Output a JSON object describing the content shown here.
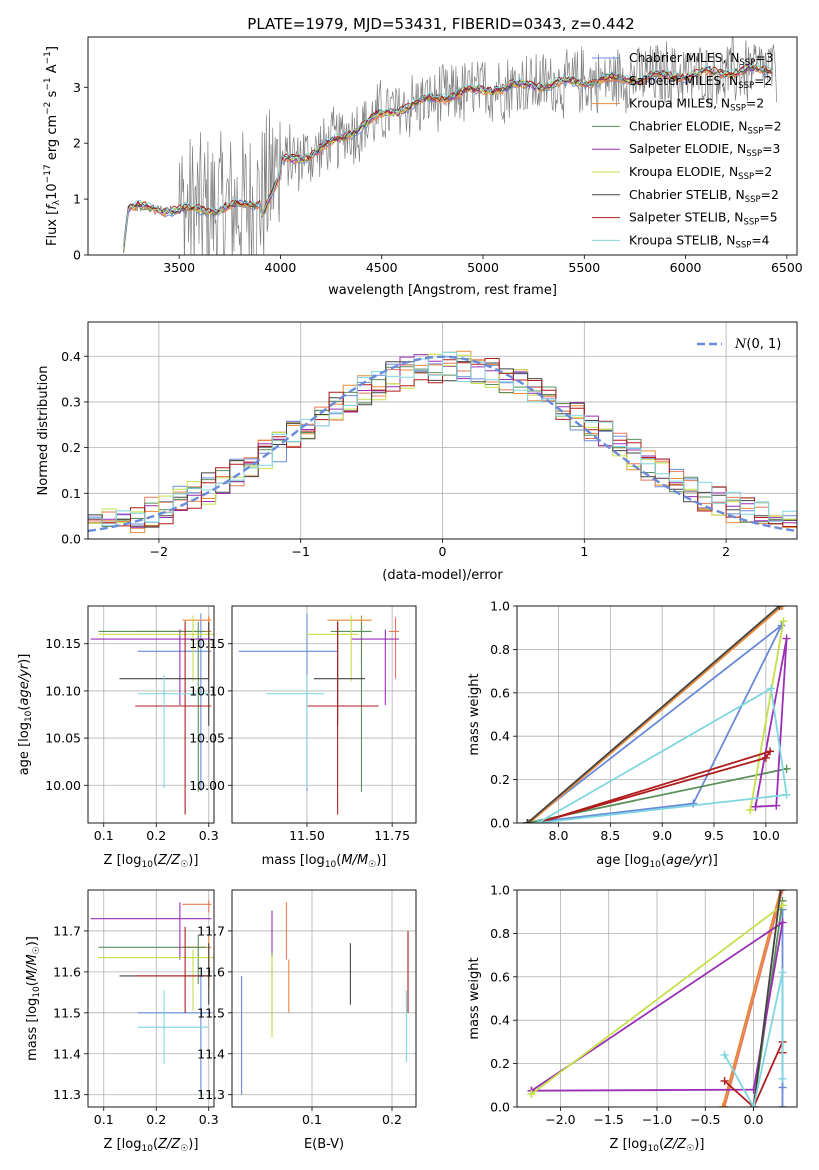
{
  "figure": {
    "title": "PLATE=1979, MJD=53431, FIBERID=0343, z=0.442"
  },
  "series_styles": [
    {
      "name": "Chabrier MILES, N$_{SSP}$=3",
      "color": "#6a8bd9"
    },
    {
      "name": "Salpeter MILES, N$_{SSP}$=2",
      "color": "#e8795a"
    },
    {
      "name": "Kroupa MILES, N$_{SSP}$=2",
      "color": "#e58a3a"
    },
    {
      "name": "Chabrier ELODIE, N$_{SSP}$=2",
      "color": "#5a8f5a"
    },
    {
      "name": "Salpeter ELODIE, N$_{SSP}$=3",
      "color": "#9a2fb5"
    },
    {
      "name": "Kroupa ELODIE, N$_{SSP}$=2",
      "color": "#c6e04c"
    },
    {
      "name": "Chabrier STELIB, N$_{SSP}$=2",
      "color": "#444444"
    },
    {
      "name": "Salpeter STELIB, N$_{SSP}$=5",
      "color": "#b01c1c"
    },
    {
      "name": "Kroupa STELIB, N$_{SSP}$=4",
      "color": "#7fd6e0"
    }
  ],
  "legend_labels": [
    {
      "pre": "Chabrier MILES, N",
      "sub": "SSP",
      "post": "=3"
    },
    {
      "pre": "Salpeter MILES, N",
      "sub": "SSP",
      "post": "=2"
    },
    {
      "pre": "Kroupa MILES, N",
      "sub": "SSP",
      "post": "=2"
    },
    {
      "pre": "Chabrier ELODIE, N",
      "sub": "SSP",
      "post": "=2"
    },
    {
      "pre": "Salpeter ELODIE, N",
      "sub": "SSP",
      "post": "=3"
    },
    {
      "pre": "Kroupa ELODIE, N",
      "sub": "SSP",
      "post": "=2"
    },
    {
      "pre": "Chabrier STELIB, N",
      "sub": "SSP",
      "post": "=2"
    },
    {
      "pre": "Salpeter STELIB, N",
      "sub": "SSP",
      "post": "=5"
    },
    {
      "pre": "Kroupa STELIB, N",
      "sub": "SSP",
      "post": "=4"
    }
  ],
  "chart_data": [
    {
      "id": "spectrum",
      "type": "line",
      "title": "PLATE=1979, MJD=53431, FIBERID=0343, z=0.442",
      "xlabel": "wavelength [Angstrom, rest frame]",
      "ylabel": "Flux [f_λ 10^-17 erg cm^-2 s^-1 A^-1]",
      "xlim": [
        3050,
        6550
      ],
      "ylim": [
        0,
        3.9
      ],
      "xticks": [
        3500,
        4000,
        4500,
        5000,
        5500,
        6000,
        6500
      ],
      "yticks": [
        0,
        1,
        2,
        3
      ],
      "grid": false,
      "legend_placement": "upper right",
      "continuum_model": {
        "x": [
          3220,
          3250,
          3500,
          3700,
          3900,
          4000,
          4150,
          4300,
          4500,
          4700,
          4900,
          5100,
          5300,
          5500,
          5700,
          5900,
          6100,
          6300,
          6400
        ],
        "y": [
          0,
          0.85,
          0.8,
          0.82,
          0.95,
          1.65,
          1.8,
          2.1,
          2.5,
          2.75,
          2.9,
          3.0,
          3.05,
          3.1,
          3.15,
          3.2,
          3.25,
          3.3,
          3.3
        ]
      },
      "data_noise": {
        "start": 3230,
        "end": 6450,
        "amplitude_blue": 1.4,
        "amplitude_red": 0.7
      }
    },
    {
      "id": "residuals",
      "type": "histogram",
      "xlabel": "(data-model)/error",
      "ylabel": "Normed distribution",
      "xlim": [
        -2.5,
        2.5
      ],
      "ylim": [
        0,
        0.475
      ],
      "xticks": [
        -2,
        -1,
        0,
        1,
        2
      ],
      "yticks": [
        0.0,
        0.1,
        0.2,
        0.3,
        0.4
      ],
      "grid": true,
      "bin_width": 0.1,
      "reference_curve": {
        "name": "N(0,1)",
        "mean": 0,
        "sigma": 1,
        "style": "dashed"
      },
      "legend_placement": "upper right"
    },
    {
      "id": "age_vs_Z",
      "type": "errorbar",
      "xlabel": "Z [log10(Z/Z☉)]",
      "ylabel": "age [log10(age/yr)]",
      "xlim": [
        0.07,
        0.31
      ],
      "ylim": [
        9.96,
        10.19
      ],
      "xticks": [
        0.1,
        0.2,
        0.3
      ],
      "yticks": [
        10.0,
        10.05,
        10.1,
        10.15
      ],
      "grid": true,
      "points": [
        {
          "x": 0.285,
          "xerr": [
            0.12,
            0.02
          ],
          "y": 10.142,
          "yerr": [
            0.148,
            0.04
          ]
        },
        {
          "x": 0.3,
          "xerr": [
            0.14,
            0.005
          ],
          "y": 10.163,
          "yerr": [
            0.05,
            0.015
          ]
        },
        {
          "x": 0.3,
          "xerr": [
            0.05,
            0.005
          ],
          "y": 10.175,
          "yerr": [
            0.05,
            0.005
          ]
        },
        {
          "x": 0.28,
          "xerr": [
            0.19,
            0.015
          ],
          "y": 10.163,
          "yerr": [
            0.17,
            0.01
          ]
        },
        {
          "x": 0.245,
          "xerr": [
            0.17,
            0.06
          ],
          "y": 10.155,
          "yerr": [
            0.07,
            0.01
          ]
        },
        {
          "x": 0.27,
          "xerr": [
            0.18,
            0.04
          ],
          "y": 10.16,
          "yerr": [
            0.05,
            0.02
          ]
        },
        {
          "x": 0.3,
          "xerr": [
            0.17,
            0.0
          ],
          "y": 10.113,
          "yerr": [
            0.05,
            0.06
          ]
        },
        {
          "x": 0.255,
          "xerr": [
            0.095,
            0.05
          ],
          "y": 10.084,
          "yerr": [
            0.115,
            0.09
          ]
        },
        {
          "x": 0.215,
          "xerr": [
            0.05,
            0.085
          ],
          "y": 10.097,
          "yerr": [
            0.1,
            0.02
          ]
        }
      ]
    },
    {
      "id": "age_vs_mass",
      "type": "errorbar",
      "xlabel": "mass [log10(M/M☉)]",
      "ylabel": "",
      "xlim": [
        11.28,
        11.82
      ],
      "ylim": [
        9.96,
        10.19
      ],
      "xticks": [
        11.5,
        11.75
      ],
      "yticks": [
        10.0,
        10.05,
        10.1,
        10.15
      ],
      "grid": true,
      "points": [
        {
          "x": 11.5,
          "xerr": [
            0.2,
            0.09
          ],
          "y": 10.142,
          "yerr": [
            0.148,
            0.04
          ]
        },
        {
          "x": 11.76,
          "xerr": [
            0.02,
            0.01
          ],
          "y": 10.163,
          "yerr": [
            0.05,
            0.015
          ]
        },
        {
          "x": 11.66,
          "xerr": [
            0.1,
            0.03
          ],
          "y": 10.175,
          "yerr": [
            0.04,
            0.005
          ]
        },
        {
          "x": 11.66,
          "xerr": [
            0.09,
            0.03
          ],
          "y": 10.163,
          "yerr": [
            0.17,
            0.01
          ]
        },
        {
          "x": 11.73,
          "xerr": [
            0.1,
            0.04
          ],
          "y": 10.155,
          "yerr": [
            0.07,
            0.01
          ]
        },
        {
          "x": 11.63,
          "xerr": [
            0.13,
            0.02
          ],
          "y": 10.16,
          "yerr": [
            0.05,
            0.02
          ]
        },
        {
          "x": 11.59,
          "xerr": [
            0.07,
            0.08
          ],
          "y": 10.113,
          "yerr": [
            0.05,
            0.06
          ]
        },
        {
          "x": 11.59,
          "xerr": [
            0.09,
            0.12
          ],
          "y": 10.084,
          "yerr": [
            0.115,
            0.09
          ]
        },
        {
          "x": 11.5,
          "xerr": [
            0.12,
            0.05
          ],
          "y": 10.097,
          "yerr": [
            0.1,
            0.02
          ]
        }
      ]
    },
    {
      "id": "weight_vs_age",
      "type": "line",
      "xlabel": "age [log10(age/yr)]",
      "ylabel": "mass weight",
      "xlim": [
        7.6,
        10.3
      ],
      "ylim": [
        0,
        1.0
      ],
      "xticks": [
        8.0,
        8.5,
        9.0,
        9.5,
        10.0
      ],
      "yticks": [
        0.0,
        0.2,
        0.4,
        0.6,
        0.8,
        1.0
      ],
      "grid": true,
      "series": [
        {
          "x": [
            7.7,
            9.3,
            10.15,
            7.7
          ],
          "y": [
            0.0,
            0.09,
            0.91,
            0.0
          ]
        },
        {
          "x": [
            7.7,
            10.15,
            7.7
          ],
          "y": [
            0.0,
            1.0,
            0.0
          ]
        },
        {
          "x": [
            7.72,
            10.16,
            7.72
          ],
          "y": [
            0.0,
            1.0,
            0.0
          ]
        },
        {
          "x": [
            7.7,
            10.2,
            7.7
          ],
          "y": [
            0.0,
            0.25,
            0.0
          ]
        },
        {
          "x": [
            9.9,
            10.1,
            10.2,
            9.9
          ],
          "y": [
            0.075,
            0.08,
            0.85,
            0.075
          ]
        },
        {
          "x": [
            9.85,
            10.17,
            9.85
          ],
          "y": [
            0.06,
            0.93,
            0.06
          ]
        },
        {
          "x": [
            7.7,
            10.13,
            7.7
          ],
          "y": [
            0.0,
            1.0,
            0.0
          ]
        },
        {
          "x": [
            7.8,
            10.0,
            10.04,
            7.8
          ],
          "y": [
            0.0,
            0.3,
            0.33,
            0.0
          ]
        },
        {
          "x": [
            7.8,
            10.05,
            10.2,
            7.8
          ],
          "y": [
            0.0,
            0.62,
            0.13,
            0.0
          ]
        }
      ]
    },
    {
      "id": "mass_vs_Z",
      "type": "errorbar",
      "xlabel": "Z [log10(Z/Z☉)]",
      "ylabel": "mass [log10(M/M☉)]",
      "xlim": [
        0.07,
        0.31
      ],
      "ylim": [
        11.27,
        11.8
      ],
      "xticks": [
        0.1,
        0.2,
        0.3
      ],
      "yticks": [
        11.3,
        11.4,
        11.5,
        11.6,
        11.7
      ],
      "grid": true,
      "points": [
        {
          "x": 0.285,
          "xerr": [
            0.12,
            0.02
          ],
          "y": 11.5,
          "yerr": [
            0.2,
            0.09
          ]
        },
        {
          "x": 0.3,
          "xerr": [
            0.05,
            0.005
          ],
          "y": 11.765,
          "yerr": [
            0.02,
            0.01
          ]
        },
        {
          "x": 0.3,
          "xerr": [
            0.05,
            0.005
          ],
          "y": 11.66,
          "yerr": [
            0.1,
            0.03
          ]
        },
        {
          "x": 0.28,
          "xerr": [
            0.19,
            0.015
          ],
          "y": 11.66,
          "yerr": [
            0.09,
            0.03
          ]
        },
        {
          "x": 0.245,
          "xerr": [
            0.17,
            0.06
          ],
          "y": 11.73,
          "yerr": [
            0.1,
            0.04
          ]
        },
        {
          "x": 0.27,
          "xerr": [
            0.18,
            0.04
          ],
          "y": 11.635,
          "yerr": [
            0.13,
            0.02
          ]
        },
        {
          "x": 0.3,
          "xerr": [
            0.17,
            0.0
          ],
          "y": 11.59,
          "yerr": [
            0.07,
            0.08
          ]
        },
        {
          "x": 0.255,
          "xerr": [
            0.095,
            0.05
          ],
          "y": 11.59,
          "yerr": [
            0.09,
            0.12
          ]
        },
        {
          "x": 0.215,
          "xerr": [
            0.05,
            0.085
          ],
          "y": 11.465,
          "yerr": [
            0.09,
            0.09
          ]
        }
      ]
    },
    {
      "id": "mass_vs_EBV",
      "type": "errorbar",
      "xlabel": "E(B-V)",
      "ylabel": "",
      "xlim": [
        0.0,
        0.23
      ],
      "ylim": [
        11.27,
        11.8
      ],
      "xticks": [
        0.1,
        0.2
      ],
      "yticks": [
        11.3,
        11.4,
        11.5,
        11.6,
        11.7
      ],
      "grid": true,
      "points": [
        {
          "x": 0.012,
          "y": 11.5,
          "yerr": [
            0.2,
            0.09
          ]
        },
        {
          "x": 0.068,
          "y": 11.7,
          "yerr": [
            0.07,
            0.07
          ]
        },
        {
          "x": 0.071,
          "y": 11.6,
          "yerr": [
            0.1,
            0.03
          ]
        },
        {
          "x": 0.05,
          "y": 11.55,
          "yerr": [
            0.09,
            0.1
          ]
        },
        {
          "x": 0.05,
          "y": 11.7,
          "yerr": [
            0.05,
            0.05
          ]
        },
        {
          "x": 0.05,
          "y": 11.55,
          "yerr": [
            0.11,
            0.09
          ]
        },
        {
          "x": 0.148,
          "y": 11.59,
          "yerr": [
            0.07,
            0.08
          ]
        },
        {
          "x": 0.22,
          "y": 11.59,
          "yerr": [
            0.09,
            0.11
          ]
        },
        {
          "x": 0.218,
          "y": 11.465,
          "yerr": [
            0.085,
            0.09
          ]
        }
      ]
    },
    {
      "id": "weight_vs_Z",
      "type": "line",
      "xlabel": "Z [log10(Z/Z☉)]",
      "ylabel": "mass weight",
      "xlim": [
        -2.45,
        0.45
      ],
      "ylim": [
        0,
        1.0
      ],
      "xticks": [
        -2.0,
        -1.5,
        -1.0,
        -0.5,
        0.0
      ],
      "yticks": [
        0.0,
        0.2,
        0.4,
        0.6,
        0.8,
        1.0
      ],
      "grid": true,
      "series": [
        {
          "x": [
            0.3,
            0.3,
            0.3,
            0.3
          ],
          "y": [
            0.0,
            0.09,
            0.91,
            0.0
          ]
        },
        {
          "x": [
            -0.3,
            0.3,
            -0.3
          ],
          "y": [
            0.0,
            1.0,
            0.0
          ]
        },
        {
          "x": [
            -0.32,
            0.28,
            -0.32
          ],
          "y": [
            0.0,
            1.0,
            0.0
          ]
        },
        {
          "x": [
            0.0,
            0.3,
            0.0
          ],
          "y": [
            0.0,
            0.95,
            0.0
          ]
        },
        {
          "x": [
            -2.3,
            0.0,
            0.3,
            -2.3
          ],
          "y": [
            0.075,
            0.08,
            0.85,
            0.075
          ]
        },
        {
          "x": [
            -2.3,
            0.3,
            -2.3
          ],
          "y": [
            0.06,
            0.93,
            0.06
          ]
        },
        {
          "x": [
            0.0,
            0.28,
            0.0
          ],
          "y": [
            0.0,
            1.0,
            0.0
          ]
        },
        {
          "x": [
            -0.3,
            0.0,
            0.3,
            0.3
          ],
          "y": [
            0.12,
            0.0,
            0.3,
            0.25
          ]
        },
        {
          "x": [
            -0.3,
            0.0,
            0.3,
            0.3
          ],
          "y": [
            0.24,
            0.0,
            0.62,
            0.13
          ]
        }
      ]
    }
  ]
}
